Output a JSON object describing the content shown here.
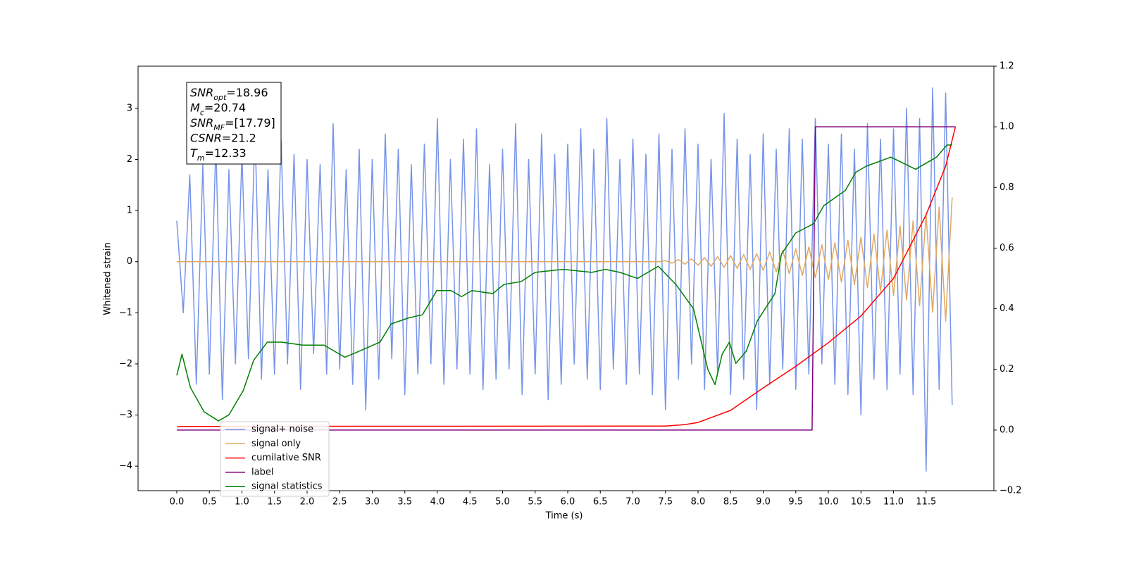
{
  "chart_data": {
    "type": "line",
    "xlabel": "Time (s)",
    "ylabel": "Whitened strain",
    "annotations": [
      {
        "main": "SNR",
        "sub": "opt",
        "rest": "=18.96"
      },
      {
        "main": "M",
        "sub": "c",
        "rest": "=20.74"
      },
      {
        "main": "SNR",
        "sub": "MF",
        "rest": "=[17.79]"
      },
      {
        "main": "CSNR",
        "sub": "",
        "rest": "=21.2"
      },
      {
        "main": "T",
        "sub": "m",
        "rest": "=12.33"
      }
    ],
    "legend": "lower left",
    "xlim": [
      -0.594,
      12.54
    ],
    "ylim": [
      -4.48,
      3.825
    ],
    "y2lim": [
      -0.2,
      1.2
    ],
    "xticks": [
      {
        "value": 0,
        "label": "0.0"
      },
      0.5,
      {
        "value": 1,
        "label": "1.0"
      },
      1.5,
      {
        "value": 2,
        "label": "2.0"
      },
      2.5,
      {
        "value": 3,
        "label": "3.0"
      },
      3.5,
      {
        "value": 4,
        "label": "4.0"
      },
      4.5,
      {
        "value": 5,
        "label": "5.0"
      },
      5.5,
      {
        "value": 6,
        "label": "6.0"
      },
      6.5,
      {
        "value": 7,
        "label": "7.0"
      },
      7.5,
      {
        "value": 8,
        "label": "8.0"
      },
      8.5,
      {
        "value": 9,
        "label": "9.0"
      },
      9.5,
      {
        "value": 10,
        "label": "10.0"
      },
      10.5,
      {
        "value": 11,
        "label": "11.0"
      },
      11.5
    ],
    "yticks": [
      {
        "value": -4,
        "label": "−4"
      },
      {
        "value": -3,
        "label": "−3"
      },
      {
        "value": -2,
        "label": "−2"
      },
      {
        "value": -1,
        "label": "−1"
      },
      0,
      1,
      2,
      3
    ],
    "y2ticks": [
      {
        "value": -0.2,
        "label": "−0.2"
      },
      {
        "value": 0,
        "label": "0.0"
      },
      0.2,
      0.4,
      0.6,
      0.8,
      {
        "value": 1,
        "label": "1.0"
      },
      1.2
    ],
    "x": [
      0,
      0.1,
      0.2,
      0.3,
      0.4,
      0.5,
      0.6,
      0.7,
      0.8,
      0.9,
      1,
      1.1,
      1.2,
      1.3,
      1.4,
      1.5,
      1.6,
      1.7,
      1.8,
      1.9,
      2,
      2.1,
      2.2,
      2.3,
      2.4,
      2.5,
      2.6,
      2.7,
      2.8,
      2.9,
      3,
      3.1,
      3.2,
      3.3,
      3.4,
      3.5,
      3.6,
      3.7,
      3.8,
      3.9,
      4,
      4.1,
      4.2,
      4.3,
      4.4,
      4.5,
      4.6,
      4.7,
      4.8,
      4.9,
      5,
      5.1,
      5.2,
      5.3,
      5.4,
      5.5,
      5.6,
      5.7,
      5.8,
      5.9,
      6,
      6.1,
      6.2,
      6.3,
      6.4,
      6.5,
      6.6,
      6.7,
      6.8,
      6.9,
      7,
      7.1,
      7.2,
      7.3,
      7.4,
      7.5,
      7.6,
      7.7,
      7.8,
      7.9,
      8,
      8.1,
      8.2,
      8.3,
      8.4,
      8.5,
      8.6,
      8.7,
      8.8,
      8.9,
      9,
      9.1,
      9.2,
      9.3,
      9.4,
      9.5,
      9.6,
      9.7,
      9.8,
      9.9,
      10,
      10.1,
      10.2,
      10.3,
      10.4,
      10.5,
      10.6,
      10.7,
      10.8,
      10.9,
      11,
      11.1,
      11.2,
      11.3,
      11.4,
      11.5,
      11.6,
      11.7,
      11.8,
      11.9
    ],
    "series": [
      {
        "name": "signal+ noise",
        "color": "#7794e8",
        "values": [
          0.8,
          -1.0,
          1.7,
          -2.4,
          1.9,
          -2.2,
          2.3,
          -2.7,
          1.8,
          -2.0,
          2.1,
          -1.9,
          2.6,
          -2.3,
          1.8,
          -2.2,
          2.4,
          -2.0,
          2.1,
          -2.5,
          2.0,
          -1.8,
          1.9,
          -2.2,
          2.7,
          -2.1,
          1.8,
          -2.4,
          2.2,
          -2.9,
          2.0,
          -2.3,
          2.5,
          -1.9,
          2.2,
          -2.6,
          1.9,
          -2.2,
          2.3,
          -2.0,
          2.8,
          -2.4,
          2.0,
          -2.1,
          2.4,
          -2.2,
          2.6,
          -2.5,
          1.9,
          -2.3,
          2.2,
          -2.1,
          2.7,
          -2.6,
          2.0,
          -2.2,
          2.5,
          -2.7,
          2.1,
          -2.4,
          2.3,
          -2.0,
          2.6,
          -2.3,
          2.2,
          -2.5,
          2.8,
          -2.1,
          2.0,
          -2.4,
          2.4,
          -2.2,
          2.1,
          -2.6,
          2.5,
          -2.9,
          2.2,
          -2.3,
          2.6,
          -2.0,
          2.3,
          -2.5,
          2.0,
          -2.2,
          2.9,
          -2.6,
          2.4,
          -2.3,
          2.1,
          -2.9,
          2.5,
          -2.4,
          2.2,
          -2.1,
          2.6,
          -2.5,
          2.4,
          -2.2,
          2.8,
          -2.0,
          2.3,
          -2.4,
          2.5,
          -2.6,
          2.2,
          -3.0,
          2.7,
          -2.3,
          2.4,
          -2.5,
          2.6,
          -2.2,
          3.0,
          -2.6,
          2.8,
          -4.1,
          3.4,
          -2.5,
          3.3,
          -2.8
        ]
      },
      {
        "name": "signal only",
        "color": "#e0a860",
        "values": [
          0,
          0,
          0,
          0,
          0,
          0,
          0,
          0,
          0,
          0,
          0,
          0,
          0,
          0,
          0,
          0,
          0,
          0,
          0,
          0,
          0,
          0,
          0,
          0,
          0,
          0,
          0,
          0,
          0,
          0,
          0,
          0,
          0,
          0,
          0,
          0,
          0,
          0,
          0,
          0,
          0,
          0,
          0,
          0,
          0,
          0,
          0,
          0,
          0,
          0,
          0,
          0,
          0,
          0,
          0,
          0,
          0,
          0,
          0,
          0,
          0,
          0,
          0,
          0,
          0,
          0,
          0,
          0,
          0,
          0,
          0,
          0,
          0,
          0,
          0,
          0.02,
          -0.03,
          0.04,
          -0.05,
          0.06,
          -0.07,
          0.08,
          -0.09,
          0.1,
          -0.11,
          0.12,
          -0.13,
          0.14,
          -0.15,
          0.16,
          -0.17,
          0.19,
          -0.2,
          0.22,
          -0.23,
          0.25,
          -0.27,
          0.29,
          -0.31,
          0.33,
          -0.35,
          0.37,
          -0.4,
          0.42,
          -0.45,
          0.48,
          -0.51,
          0.54,
          -0.58,
          0.62,
          -0.66,
          0.7,
          -0.75,
          0.8,
          -0.86,
          0.92,
          -0.99,
          1.07,
          -1.16,
          1.26
        ]
      },
      {
        "name": "cumilative SNR",
        "color": "#ff0000",
        "axis": "y2",
        "x": [
          0,
          0.05,
          7.5,
          7.8,
          8.0,
          8.5,
          9.0,
          9.5,
          10.0,
          10.5,
          11.0,
          11.5,
          11.8,
          11.95
        ],
        "values": [
          0.01,
          0.012,
          0.013,
          0.018,
          0.025,
          0.065,
          0.139,
          0.21,
          0.288,
          0.376,
          0.5,
          0.71,
          0.87,
          1.0
        ]
      },
      {
        "name": "label",
        "color": "#800080",
        "axis": "y2",
        "x": [
          0,
          9.75,
          9.8,
          11.95
        ],
        "values": [
          0,
          0,
          1,
          1
        ]
      },
      {
        "name": "signal statistics",
        "color": "#008000",
        "axis": "y2",
        "x": [
          0,
          0.08,
          0.21,
          0.42,
          0.64,
          0.8,
          1.02,
          1.18,
          1.39,
          1.61,
          1.93,
          2.26,
          2.58,
          2.8,
          3.12,
          3.29,
          3.56,
          3.77,
          3.99,
          4.21,
          4.37,
          4.53,
          4.85,
          5.02,
          5.29,
          5.5,
          5.93,
          6.37,
          6.58,
          6.8,
          7.07,
          7.39,
          7.66,
          7.93,
          8.15,
          8.26,
          8.37,
          8.48,
          8.58,
          8.74,
          8.91,
          9.18,
          9.28,
          9.5,
          9.77,
          9.93,
          10.26,
          10.42,
          10.58,
          10.96,
          11.34,
          11.66,
          11.82,
          11.9
        ],
        "values": [
          0.18,
          0.25,
          0.14,
          0.06,
          0.03,
          0.05,
          0.13,
          0.23,
          0.29,
          0.29,
          0.28,
          0.28,
          0.24,
          0.26,
          0.29,
          0.35,
          0.37,
          0.38,
          0.46,
          0.46,
          0.44,
          0.46,
          0.45,
          0.48,
          0.49,
          0.52,
          0.53,
          0.52,
          0.53,
          0.52,
          0.5,
          0.54,
          0.48,
          0.4,
          0.2,
          0.15,
          0.25,
          0.29,
          0.22,
          0.26,
          0.36,
          0.45,
          0.58,
          0.65,
          0.68,
          0.74,
          0.79,
          0.85,
          0.87,
          0.9,
          0.86,
          0.9,
          0.94,
          0.94
        ]
      }
    ]
  }
}
